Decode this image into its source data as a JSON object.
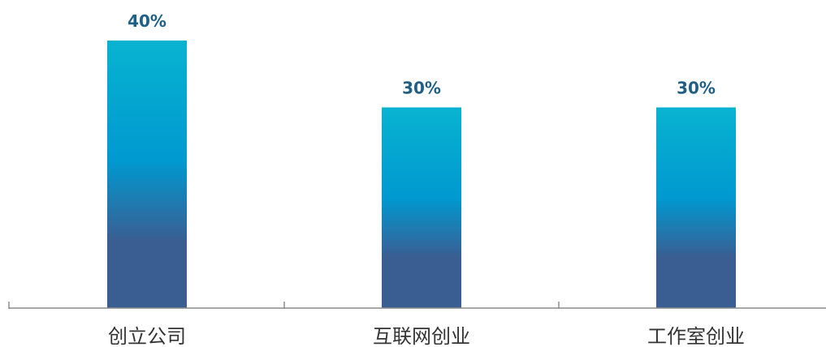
{
  "chart_data": {
    "type": "bar",
    "categories": [
      "创立公司",
      "互联网创业",
      "工作室创业"
    ],
    "values": [
      40,
      30,
      30
    ],
    "value_labels": [
      "40%",
      "30%",
      "30%"
    ],
    "title": "",
    "xlabel": "",
    "ylabel": "",
    "ylim": [
      0,
      40
    ],
    "grid": false,
    "legend": "none",
    "colors": {
      "bar_top": "#08b3d0",
      "bar_mid": "#0099d0",
      "bar_bottom": "#3a5e92",
      "value_text": "#1f5f86",
      "category_text": "#333333",
      "axis": "#8c8c8c"
    }
  }
}
